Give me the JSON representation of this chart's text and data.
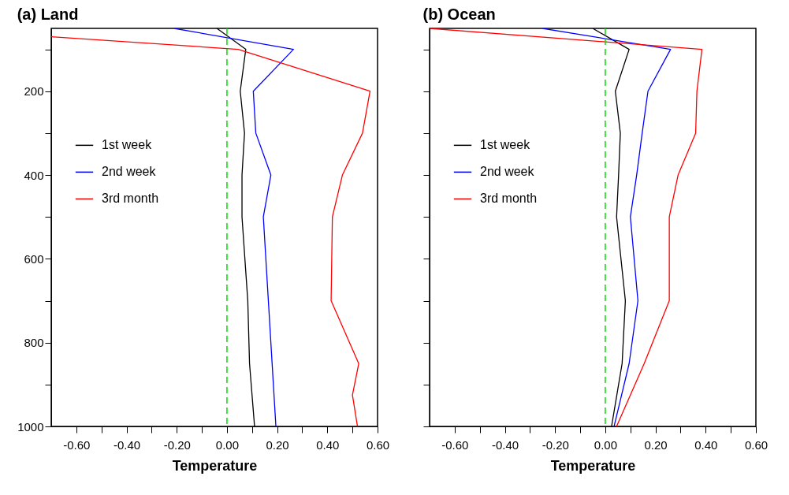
{
  "chart_data": [
    {
      "type": "line",
      "title": "(a) Land",
      "xlabel": "Temperature",
      "orientation": "horizontal",
      "legend": "left",
      "grid": false,
      "tick_labels": true,
      "xlim": [
        -0.7,
        0.6
      ],
      "ylim": [
        1000,
        50
      ],
      "xticks": [
        {
          "value": -0.6,
          "label": "-0.60"
        },
        {
          "value": -0.5,
          "label": null
        },
        {
          "value": -0.4,
          "label": "-0.40"
        },
        {
          "value": -0.3,
          "label": null
        },
        {
          "value": -0.2,
          "label": "-0.20"
        },
        {
          "value": -0.1,
          "label": null
        },
        {
          "value": 0,
          "label": "0.00"
        },
        {
          "value": 0.1,
          "label": null
        },
        {
          "value": 0.2,
          "label": "0.20"
        },
        {
          "value": 0.3,
          "label": null
        },
        {
          "value": 0.4,
          "label": "0.40"
        },
        {
          "value": 0.5,
          "label": null
        },
        {
          "value": 0.6,
          "label": "0.60"
        }
      ],
      "yticks": [
        {
          "value": 100,
          "label": null
        },
        200,
        {
          "value": 300,
          "label": null
        },
        400,
        {
          "value": 500,
          "label": null
        },
        600,
        {
          "value": 700,
          "label": null
        },
        800,
        {
          "value": 900,
          "label": null
        },
        1000
      ],
      "ref_lines": [
        {
          "axis": "x",
          "value": 0,
          "color": "#00dd00",
          "line_style": "dashed"
        }
      ],
      "series": [
        {
          "name": "1st week",
          "color": "#000000",
          "x": [
            50,
            100,
            200,
            300,
            400,
            500,
            700,
            850,
            1000
          ],
          "values": [
            -0.04,
            0.075,
            0.053,
            0.07,
            0.06,
            0.06,
            0.083,
            0.09,
            0.11
          ]
        },
        {
          "name": "2nd week",
          "color": "#0000ff",
          "x": [
            50,
            100,
            200,
            300,
            400,
            500,
            700,
            850,
            1000
          ],
          "values": [
            -0.21,
            0.265,
            0.105,
            0.115,
            0.175,
            0.145,
            0.165,
            0.18,
            0.195
          ]
        },
        {
          "name": "3rd month",
          "color": "#ff0000",
          "x": [
            70,
            100,
            200,
            300,
            400,
            500,
            700,
            850,
            925,
            1000
          ],
          "values": [
            -0.7,
            0.045,
            0.57,
            0.54,
            0.46,
            0.42,
            0.415,
            0.525,
            0.5,
            0.52
          ]
        }
      ]
    },
    {
      "type": "line",
      "title": "(b) Ocean",
      "xlabel": "Temperature",
      "orientation": "horizontal",
      "legend": "left",
      "grid": false,
      "tick_labels": "x",
      "xlim": [
        -0.7,
        0.6
      ],
      "ylim": [
        1000,
        50
      ],
      "xticks": [
        {
          "value": -0.6,
          "label": "-0.60"
        },
        {
          "value": -0.5,
          "label": null
        },
        {
          "value": -0.4,
          "label": "-0.40"
        },
        {
          "value": -0.3,
          "label": null
        },
        {
          "value": -0.2,
          "label": "-0.20"
        },
        {
          "value": -0.1,
          "label": null
        },
        {
          "value": 0,
          "label": "0.00"
        },
        {
          "value": 0.1,
          "label": null
        },
        {
          "value": 0.2,
          "label": "0.20"
        },
        {
          "value": 0.3,
          "label": null
        },
        {
          "value": 0.4,
          "label": "0.40"
        },
        {
          "value": 0.5,
          "label": null
        },
        {
          "value": 0.6,
          "label": "0.60"
        }
      ],
      "yticks": [
        {
          "value": 100,
          "label": null
        },
        200,
        {
          "value": 300,
          "label": null
        },
        400,
        {
          "value": 500,
          "label": null
        },
        600,
        {
          "value": 700,
          "label": null
        },
        800,
        {
          "value": 900,
          "label": null
        },
        1000
      ],
      "ref_lines": [
        {
          "axis": "x",
          "value": 0,
          "color": "#00dd00",
          "line_style": "dashed"
        }
      ],
      "series": [
        {
          "name": "1st week",
          "color": "#000000",
          "x": [
            50,
            100,
            200,
            300,
            400,
            500,
            700,
            850,
            1000
          ],
          "values": [
            -0.05,
            0.095,
            0.04,
            0.06,
            0.053,
            0.045,
            0.08,
            0.067,
            0.025
          ]
        },
        {
          "name": "2nd week",
          "color": "#0000ff",
          "x": [
            50,
            100,
            200,
            300,
            400,
            500,
            700,
            850,
            1000
          ],
          "values": [
            -0.25,
            0.26,
            0.17,
            0.147,
            0.125,
            0.1,
            0.13,
            0.095,
            0.035
          ]
        },
        {
          "name": "3rd month",
          "color": "#ff0000",
          "x": [
            50,
            100,
            200,
            300,
            400,
            500,
            700,
            850,
            1000
          ],
          "values": [
            -0.7,
            0.385,
            0.365,
            0.36,
            0.29,
            0.255,
            0.255,
            0.155,
            0.045
          ]
        }
      ]
    }
  ]
}
